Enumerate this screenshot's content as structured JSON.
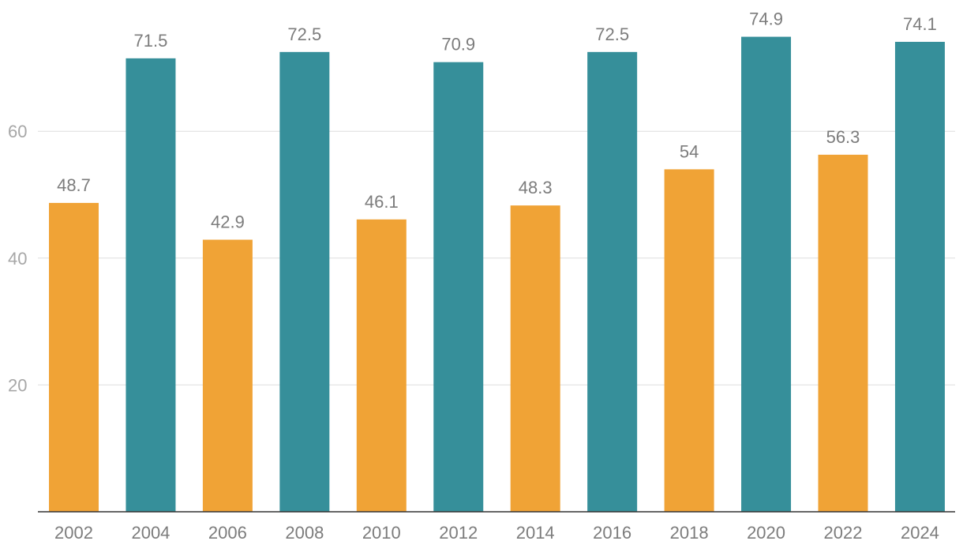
{
  "chart_data": {
    "type": "bar",
    "categories": [
      "2002",
      "2004",
      "2006",
      "2008",
      "2010",
      "2012",
      "2014",
      "2016",
      "2018",
      "2020",
      "2022",
      "2024"
    ],
    "values": [
      48.7,
      71.5,
      42.9,
      72.5,
      46.1,
      70.9,
      48.3,
      72.5,
      54,
      74.9,
      56.3,
      74.1
    ],
    "value_labels": [
      "48.7",
      "71.5",
      "42.9",
      "72.5",
      "46.1",
      "70.9",
      "48.3",
      "72.5",
      "54",
      "74.9",
      "56.3",
      "74.1"
    ],
    "ylim": [
      0,
      80
    ],
    "yticks": [
      20,
      40,
      60
    ],
    "ytick_labels": [
      "20",
      "40",
      "60"
    ],
    "grid": true,
    "title": "",
    "xlabel": "",
    "ylabel": "",
    "colors": {
      "orange": "#f0a336",
      "teal": "#368f9a"
    },
    "bar_colors": [
      "orange",
      "teal",
      "orange",
      "teal",
      "orange",
      "teal",
      "orange",
      "teal",
      "orange",
      "teal",
      "orange",
      "teal"
    ]
  }
}
